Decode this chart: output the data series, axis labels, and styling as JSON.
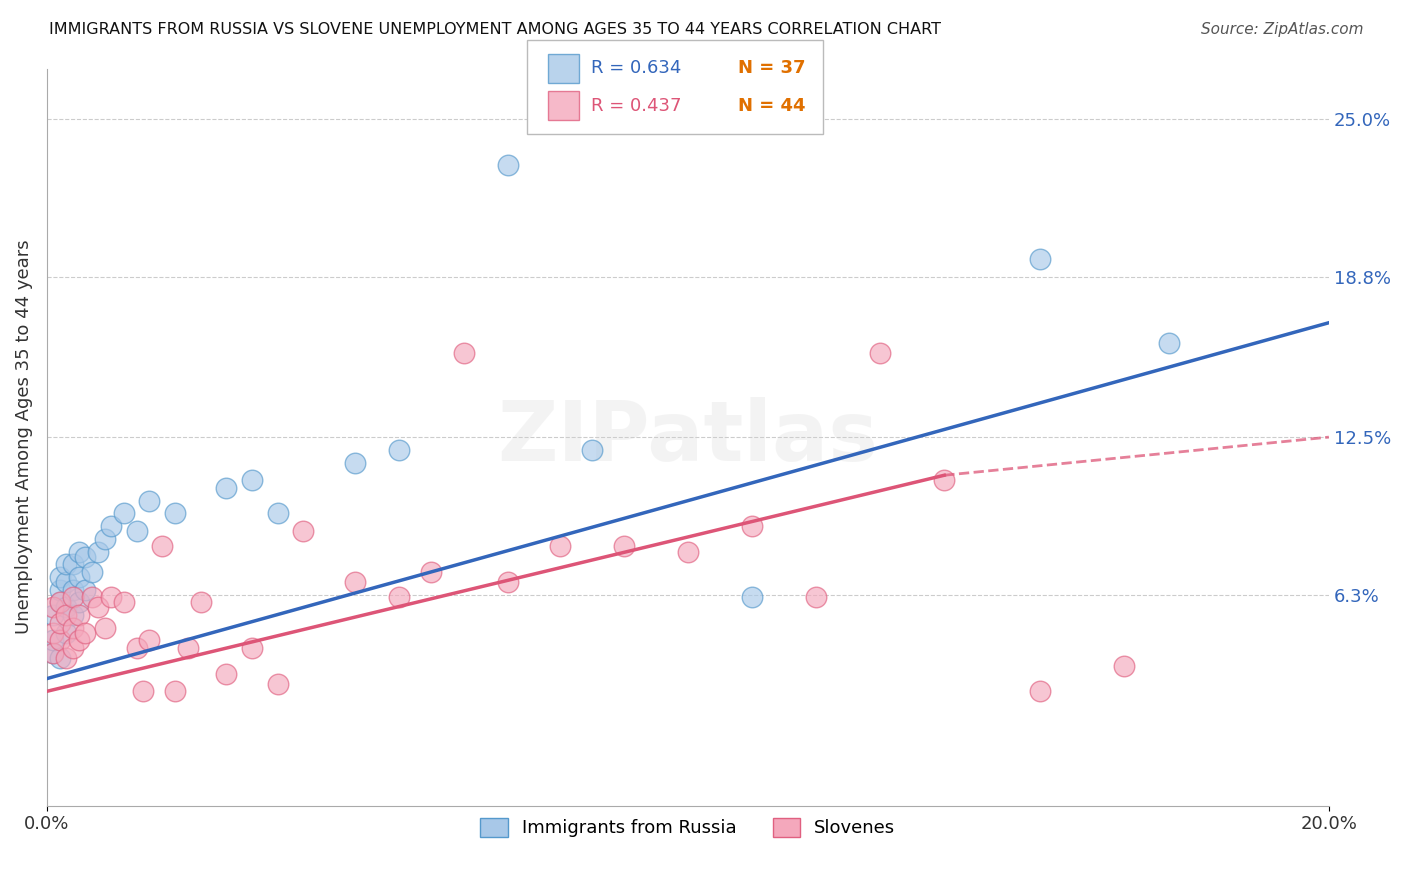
{
  "title": "IMMIGRANTS FROM RUSSIA VS SLOVENE UNEMPLOYMENT AMONG AGES 35 TO 44 YEARS CORRELATION CHART",
  "source": "Source: ZipAtlas.com",
  "ylabel": "Unemployment Among Ages 35 to 44 years",
  "xlim": [
    0,
    0.2
  ],
  "ylim": [
    -0.02,
    0.27
  ],
  "ytick_labels_right": [
    "6.3%",
    "12.5%",
    "18.8%",
    "25.0%"
  ],
  "ytick_values_right": [
    0.063,
    0.125,
    0.188,
    0.25
  ],
  "gridline_values": [
    0.063,
    0.125,
    0.188,
    0.25
  ],
  "blue_color": "#a8c8e8",
  "pink_color": "#f4a8bc",
  "blue_edge_color": "#5599cc",
  "pink_edge_color": "#e06080",
  "blue_line_color": "#3366bb",
  "pink_line_color": "#dd5577",
  "legend_blue_R": "R = 0.634",
  "legend_blue_N": "N = 37",
  "legend_pink_R": "R = 0.437",
  "legend_pink_N": "N = 44",
  "legend_N_color": "#e07000",
  "watermark": "ZIPatlas",
  "legend_label_blue": "Immigrants from Russia",
  "legend_label_pink": "Slovenes",
  "blue_x": [
    0.001,
    0.001,
    0.001,
    0.002,
    0.002,
    0.002,
    0.002,
    0.003,
    0.003,
    0.003,
    0.003,
    0.004,
    0.004,
    0.004,
    0.005,
    0.005,
    0.005,
    0.006,
    0.006,
    0.007,
    0.008,
    0.009,
    0.01,
    0.012,
    0.014,
    0.016,
    0.02,
    0.028,
    0.032,
    0.036,
    0.048,
    0.055,
    0.072,
    0.085,
    0.11,
    0.155,
    0.175
  ],
  "blue_y": [
    0.04,
    0.045,
    0.055,
    0.038,
    0.06,
    0.065,
    0.07,
    0.048,
    0.058,
    0.068,
    0.075,
    0.055,
    0.065,
    0.075,
    0.06,
    0.07,
    0.08,
    0.065,
    0.078,
    0.072,
    0.08,
    0.085,
    0.09,
    0.095,
    0.088,
    0.1,
    0.095,
    0.105,
    0.108,
    0.095,
    0.115,
    0.12,
    0.232,
    0.12,
    0.062,
    0.195,
    0.162
  ],
  "pink_x": [
    0.001,
    0.001,
    0.001,
    0.002,
    0.002,
    0.002,
    0.003,
    0.003,
    0.004,
    0.004,
    0.004,
    0.005,
    0.005,
    0.006,
    0.007,
    0.008,
    0.009,
    0.01,
    0.012,
    0.014,
    0.015,
    0.016,
    0.018,
    0.02,
    0.022,
    0.024,
    0.028,
    0.032,
    0.036,
    0.04,
    0.048,
    0.055,
    0.06,
    0.065,
    0.072,
    0.08,
    0.09,
    0.1,
    0.11,
    0.12,
    0.13,
    0.14,
    0.155,
    0.168
  ],
  "pink_y": [
    0.04,
    0.048,
    0.058,
    0.045,
    0.052,
    0.06,
    0.038,
    0.055,
    0.042,
    0.05,
    0.062,
    0.045,
    0.055,
    0.048,
    0.062,
    0.058,
    0.05,
    0.062,
    0.06,
    0.042,
    0.025,
    0.045,
    0.082,
    0.025,
    0.042,
    0.06,
    0.032,
    0.042,
    0.028,
    0.088,
    0.068,
    0.062,
    0.072,
    0.158,
    0.068,
    0.082,
    0.082,
    0.08,
    0.09,
    0.062,
    0.158,
    0.108,
    0.025,
    0.035
  ]
}
